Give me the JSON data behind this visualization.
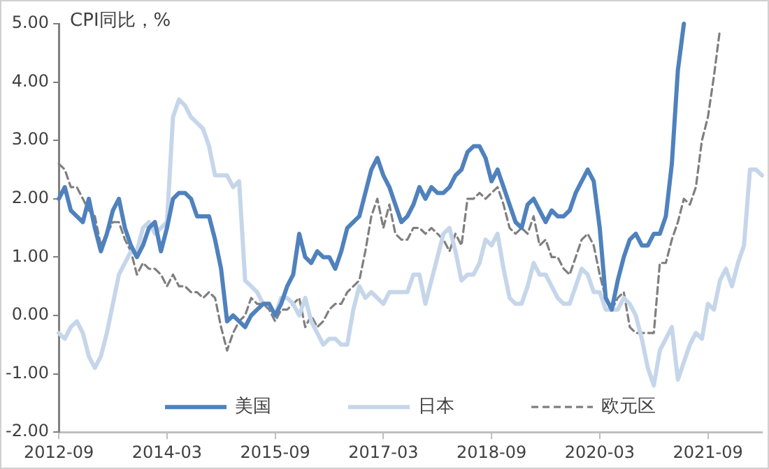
{
  "chart_data": {
    "type": "line",
    "ylabel": "CPI同比，%",
    "x": [
      "2012-09",
      "2012-10",
      "2012-11",
      "2012-12",
      "2013-01",
      "2013-02",
      "2013-03",
      "2013-04",
      "2013-05",
      "2013-06",
      "2013-07",
      "2013-08",
      "2013-09",
      "2013-10",
      "2013-11",
      "2013-12",
      "2014-01",
      "2014-02",
      "2014-03",
      "2014-04",
      "2014-05",
      "2014-06",
      "2014-07",
      "2014-08",
      "2014-09",
      "2014-10",
      "2014-11",
      "2014-12",
      "2015-01",
      "2015-02",
      "2015-03",
      "2015-04",
      "2015-05",
      "2015-06",
      "2015-07",
      "2015-08",
      "2015-09",
      "2015-10",
      "2015-11",
      "2015-12",
      "2016-01",
      "2016-02",
      "2016-03",
      "2016-04",
      "2016-05",
      "2016-06",
      "2016-07",
      "2016-08",
      "2016-09",
      "2016-10",
      "2016-11",
      "2016-12",
      "2017-01",
      "2017-02",
      "2017-03",
      "2017-04",
      "2017-05",
      "2017-06",
      "2017-07",
      "2017-08",
      "2017-09",
      "2017-10",
      "2017-11",
      "2017-12",
      "2018-01",
      "2018-02",
      "2018-03",
      "2018-04",
      "2018-05",
      "2018-06",
      "2018-07",
      "2018-08",
      "2018-09",
      "2018-10",
      "2018-11",
      "2018-12",
      "2019-01",
      "2019-02",
      "2019-03",
      "2019-04",
      "2019-05",
      "2019-06",
      "2019-07",
      "2019-08",
      "2019-09",
      "2019-10",
      "2019-11",
      "2019-12",
      "2020-01",
      "2020-02",
      "2020-03",
      "2020-04",
      "2020-05",
      "2020-06",
      "2020-07",
      "2020-08",
      "2020-09",
      "2020-10",
      "2020-11",
      "2020-12",
      "2021-01",
      "2021-02",
      "2021-03",
      "2021-04",
      "2021-05",
      "2021-06",
      "2021-07",
      "2021-08",
      "2021-09",
      "2021-10",
      "2021-11",
      "2021-12",
      "2022-01",
      "2022-02",
      "2022-03",
      "2022-04",
      "2022-05",
      "2022-06"
    ],
    "series": [
      {
        "name": "美国",
        "color": "#4f81bd",
        "values": [
          2.0,
          2.2,
          1.8,
          1.7,
          1.6,
          2.0,
          1.5,
          1.1,
          1.4,
          1.8,
          2.0,
          1.5,
          1.2,
          1.0,
          1.2,
          1.5,
          1.6,
          1.1,
          1.5,
          2.0,
          2.1,
          2.1,
          2.0,
          1.7,
          1.7,
          1.7,
          1.3,
          0.8,
          -0.1,
          0.0,
          -0.1,
          -0.2,
          0.0,
          0.1,
          0.2,
          0.2,
          0.0,
          0.2,
          0.5,
          0.7,
          1.4,
          1.0,
          0.9,
          1.1,
          1.0,
          1.0,
          0.8,
          1.1,
          1.5,
          1.6,
          1.7,
          2.1,
          2.5,
          2.7,
          2.4,
          2.2,
          1.9,
          1.6,
          1.7,
          1.9,
          2.2,
          2.0,
          2.2,
          2.1,
          2.1,
          2.2,
          2.4,
          2.5,
          2.8,
          2.9,
          2.9,
          2.7,
          2.3,
          2.5,
          2.2,
          1.9,
          1.6,
          1.5,
          1.9,
          2.0,
          1.8,
          1.6,
          1.8,
          1.7,
          1.7,
          1.8,
          2.1,
          2.3,
          2.5,
          2.3,
          1.5,
          0.3,
          0.1,
          0.6,
          1.0,
          1.3,
          1.4,
          1.2,
          1.2,
          1.4,
          1.4,
          1.7,
          2.6,
          4.2,
          5.0,
          null,
          null,
          null,
          null,
          null,
          null,
          null,
          null,
          null,
          null,
          null,
          null,
          null
        ]
      },
      {
        "name": "日本",
        "color": "#c6d6ea",
        "values": [
          -0.3,
          -0.4,
          -0.2,
          -0.1,
          -0.3,
          -0.7,
          -0.9,
          -0.7,
          -0.3,
          0.2,
          0.7,
          0.9,
          1.1,
          1.1,
          1.5,
          1.6,
          1.4,
          1.5,
          1.6,
          3.4,
          3.7,
          3.6,
          3.4,
          3.3,
          3.2,
          2.9,
          2.4,
          2.4,
          2.4,
          2.2,
          2.3,
          0.6,
          0.5,
          0.4,
          0.2,
          0.2,
          0.0,
          0.3,
          0.3,
          0.2,
          0.0,
          0.3,
          -0.1,
          -0.3,
          -0.5,
          -0.4,
          -0.4,
          -0.5,
          -0.5,
          0.1,
          0.5,
          0.3,
          0.4,
          0.3,
          0.2,
          0.4,
          0.4,
          0.4,
          0.4,
          0.7,
          0.7,
          0.2,
          0.6,
          1.0,
          1.4,
          1.5,
          1.1,
          0.6,
          0.7,
          0.7,
          0.9,
          1.3,
          1.2,
          1.4,
          0.8,
          0.3,
          0.2,
          0.2,
          0.5,
          0.9,
          0.7,
          0.7,
          0.5,
          0.3,
          0.2,
          0.2,
          0.5,
          0.8,
          0.7,
          0.4,
          0.4,
          0.1,
          0.1,
          0.1,
          0.3,
          0.2,
          0.0,
          -0.4,
          -0.9,
          -1.2,
          -0.6,
          -0.4,
          -0.2,
          -1.1,
          -0.8,
          -0.5,
          -0.3,
          -0.4,
          0.2,
          0.1,
          0.6,
          0.8,
          0.5,
          0.9,
          1.2,
          2.5,
          2.5,
          2.4
        ]
      },
      {
        "name": "欧元区",
        "color": "#7f7f7f",
        "line_style": "dashed",
        "values": [
          2.6,
          2.5,
          2.2,
          2.2,
          2.0,
          1.8,
          1.7,
          1.2,
          1.4,
          1.6,
          1.6,
          1.3,
          1.1,
          0.7,
          0.9,
          0.8,
          0.8,
          0.7,
          0.5,
          0.7,
          0.5,
          0.5,
          0.4,
          0.4,
          0.3,
          0.4,
          0.3,
          -0.2,
          -0.6,
          -0.3,
          -0.1,
          0.0,
          0.3,
          0.2,
          0.2,
          0.1,
          -0.1,
          0.1,
          0.1,
          0.2,
          0.3,
          -0.2,
          0.0,
          -0.2,
          -0.1,
          0.1,
          0.2,
          0.2,
          0.4,
          0.5,
          0.6,
          1.1,
          1.7,
          2.0,
          1.5,
          1.9,
          1.4,
          1.3,
          1.3,
          1.5,
          1.5,
          1.4,
          1.5,
          1.4,
          1.3,
          1.1,
          1.4,
          1.2,
          2.0,
          2.0,
          2.1,
          2.0,
          2.1,
          2.2,
          1.9,
          1.5,
          1.4,
          1.5,
          1.4,
          1.7,
          1.2,
          1.3,
          1.0,
          1.0,
          0.8,
          0.7,
          1.0,
          1.3,
          1.4,
          1.2,
          0.7,
          0.3,
          0.1,
          0.3,
          0.4,
          -0.2,
          -0.3,
          -0.3,
          -0.3,
          -0.3,
          0.9,
          0.9,
          1.3,
          1.6,
          2.0,
          1.9,
          2.2,
          3.0,
          3.4,
          4.1,
          4.9,
          null,
          null,
          null,
          null,
          null,
          null,
          null
        ]
      }
    ],
    "xlim": [
      "2012-09",
      "2022-06"
    ],
    "xticks": [
      "2012-09",
      "2014-03",
      "2015-09",
      "2017-03",
      "2018-09",
      "2020-03",
      "2021-09"
    ],
    "ylim": [
      -2,
      5
    ],
    "yticks": [
      {
        "value": -2,
        "label": "-2.00"
      },
      {
        "value": -1,
        "label": "-1.00"
      },
      {
        "value": 0,
        "label": "0.00"
      },
      {
        "value": 1,
        "label": "1.00"
      },
      {
        "value": 2,
        "label": "2.00"
      },
      {
        "value": 3,
        "label": "3.00"
      },
      {
        "value": 4,
        "label": "4.00"
      },
      {
        "value": 5,
        "label": "5.00"
      }
    ],
    "grid": false,
    "legend": "bottom",
    "marker": "none"
  }
}
